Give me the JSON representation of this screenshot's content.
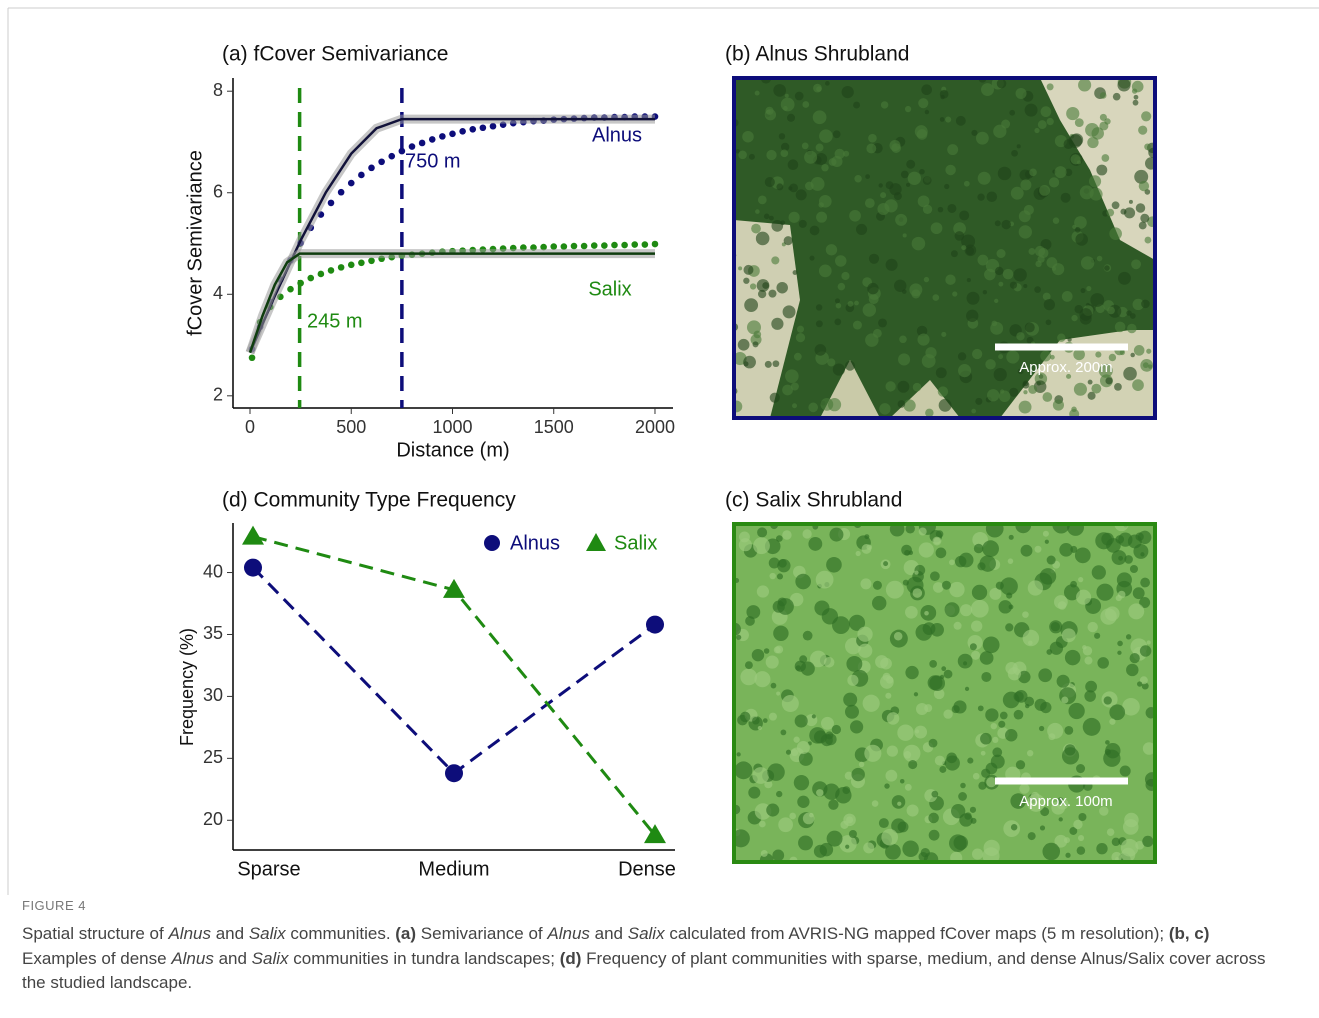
{
  "figure_label": "FIGURE 4",
  "caption": [
    "Spatial structure of ",
    "Alnus",
    " and ",
    "Salix",
    " communities. ",
    "(a)",
    " Semivariance of ",
    "Alnus",
    " and ",
    "Salix",
    " calculated from AVRIS-NG mapped fCover maps (5 m resolution); ",
    "(b, c)",
    " Examples of dense ",
    "Alnus",
    " and ",
    "Salix",
    " communities in tundra landscapes; ",
    "(d)",
    " Frequency of plant communities with sparse, medium, and dense Alnus/Salix cover across the studied landscape."
  ],
  "photos": [
    {
      "title": "(b) Alnus Shrubland",
      "scale_label": "Approx. 200m"
    },
    {
      "title": "(c) Salix Shrubland",
      "scale_label": "Approx. 100m"
    }
  ],
  "chart_data": [
    {
      "type": "scatter",
      "title": "(a) fCover Semivariance",
      "x_label": "Distance (m)",
      "y_label": "fCover Semivariance",
      "xlim": [
        -84,
        2089
      ],
      "ylim": [
        1.76,
        8.26
      ],
      "xticks": [
        0,
        500,
        1000,
        1500,
        2000
      ],
      "yticks": [
        2,
        4,
        6,
        8
      ],
      "x": [
        10,
        50,
        100,
        150,
        200,
        250,
        300,
        350,
        400,
        450,
        500,
        550,
        600,
        650,
        700,
        750,
        800,
        850,
        900,
        950,
        1000,
        1050,
        1100,
        1150,
        1200,
        1250,
        1300,
        1350,
        1400,
        1450,
        1500,
        1550,
        1600,
        1650,
        1700,
        1750,
        1800,
        1850,
        1900,
        1950,
        2000
      ],
      "series": [
        {
          "name": "Alnus",
          "color": "#0d0d7a",
          "fit_color": "#12123a",
          "values": [
            2.92,
            3.36,
            3.85,
            4.29,
            4.67,
            5.01,
            5.31,
            5.57,
            5.8,
            6.01,
            6.19,
            6.35,
            6.49,
            6.61,
            6.72,
            6.82,
            6.91,
            6.98,
            7.05,
            7.11,
            7.16,
            7.21,
            7.25,
            7.28,
            7.31,
            7.34,
            7.37,
            7.39,
            7.41,
            7.42,
            7.44,
            7.45,
            7.46,
            7.47,
            7.48,
            7.48,
            7.49,
            7.49,
            7.5,
            7.5,
            7.5
          ],
          "fit_x": [
            0,
            125,
            250,
            375,
            500,
            625,
            750,
            2000
          ],
          "fit_values": [
            2.85,
            3.99,
            5.06,
            6.01,
            6.77,
            7.27,
            7.45,
            7.45
          ],
          "range": 750,
          "range_label": "750 m"
        },
        {
          "name": "Salix",
          "color": "#1f8a12",
          "fit_color": "#0f3d0f",
          "values": [
            2.75,
            3.45,
            3.75,
            3.95,
            4.1,
            4.22,
            4.32,
            4.4,
            4.47,
            4.53,
            4.58,
            4.62,
            4.66,
            4.7,
            4.73,
            4.76,
            4.78,
            4.8,
            4.82,
            4.84,
            4.85,
            4.86,
            4.87,
            4.88,
            4.89,
            4.9,
            4.91,
            4.92,
            4.92,
            4.93,
            4.94,
            4.94,
            4.95,
            4.95,
            4.96,
            4.96,
            4.97,
            4.97,
            4.98,
            4.98,
            4.99
          ],
          "fit_x": [
            0,
            61.25,
            122.5,
            183.75,
            245,
            2000
          ],
          "fit_values": [
            2.85,
            3.57,
            4.19,
            4.63,
            4.8,
            4.8
          ],
          "range": 245,
          "range_label": "245 m"
        }
      ]
    },
    {
      "type": "line",
      "title": "(d) Community Type Frequency",
      "y_label": "Frequency (%)",
      "categories": [
        "Sparse",
        "Medium",
        "Dense"
      ],
      "ylim": [
        17.6,
        44
      ],
      "yticks": [
        20,
        25,
        30,
        35,
        40
      ],
      "legend": "top-right",
      "series": [
        {
          "name": "Alnus",
          "color": "#0d0d7a",
          "marker": "circle",
          "values": [
            40.4,
            23.8,
            35.8
          ]
        },
        {
          "name": "Salix",
          "color": "#1f8a12",
          "marker": "triangle",
          "values": [
            42.9,
            38.6,
            18.8
          ]
        }
      ]
    }
  ]
}
